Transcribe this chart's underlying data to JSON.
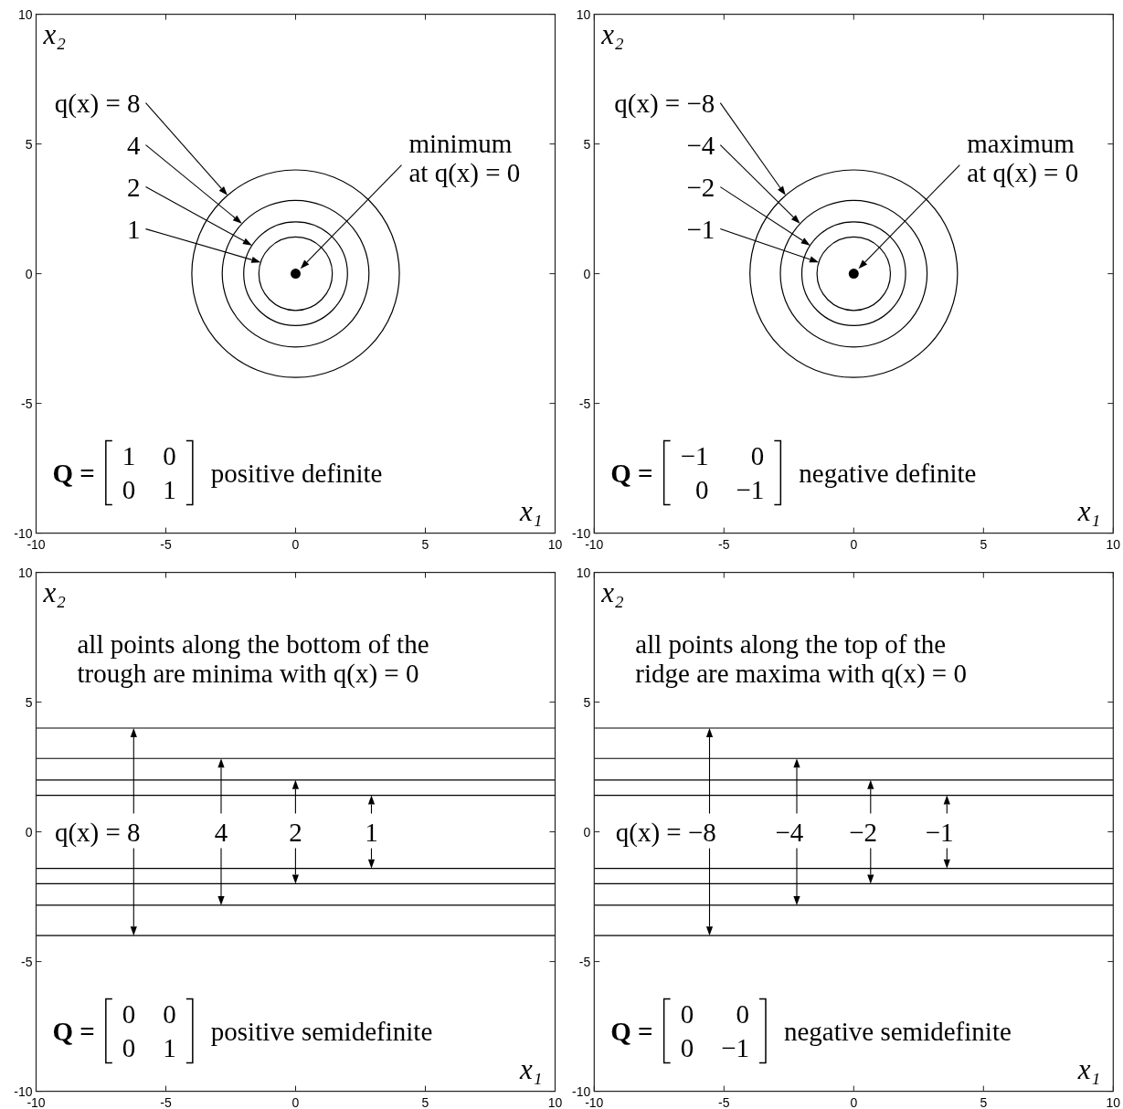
{
  "chart_data": [
    {
      "type": "scatter",
      "xlabel": "x₁",
      "ylabel": "x₂",
      "xlim": [
        -10,
        10
      ],
      "ylim": [
        -10,
        10
      ],
      "xticks": [
        -10,
        -5,
        0,
        5,
        10
      ],
      "yticks": [
        -10,
        -5,
        0,
        5,
        10
      ],
      "series": [
        {
          "marker": "circle",
          "color": "#000000",
          "x": [
            0
          ],
          "values": [
            0
          ]
        }
      ],
      "annotations": [
        "q(x) = 8",
        "4",
        "2",
        "1",
        "minimum\nat q(x) = 0",
        "Q =",
        "1 0\n0 1",
        "positive definite"
      ]
    },
    {
      "type": "scatter",
      "xlabel": "x₁",
      "ylabel": "x₂",
      "xlim": [
        -10,
        10
      ],
      "ylim": [
        -10,
        10
      ],
      "xticks": [
        -10,
        -5,
        0,
        5,
        10
      ],
      "yticks": [
        -10,
        -5,
        0,
        5,
        10
      ],
      "series": [
        {
          "marker": "circle",
          "color": "#000000",
          "x": [
            0
          ],
          "values": [
            0
          ]
        }
      ],
      "annotations": [
        "q(x) = −8",
        "−4",
        "−2",
        "−1",
        "maximum\nat q(x) = 0",
        "Q =",
        "−1 0\n0 −1",
        "negative definite"
      ]
    },
    {
      "type": "line",
      "xlabel": "x₁",
      "ylabel": "x₂",
      "xlim": [
        -10,
        10
      ],
      "ylim": [
        -10,
        10
      ],
      "xticks": [
        -10,
        -5,
        0,
        5,
        10
      ],
      "yticks": [
        -10,
        -5,
        0,
        5,
        10
      ],
      "series": [
        {
          "color": "#000000",
          "x": [
            -10,
            10
          ],
          "values": [
            4,
            4
          ]
        },
        {
          "color": "#000000",
          "x": [
            -10,
            10
          ],
          "values": [
            2.83,
            2.83
          ]
        },
        {
          "color": "#000000",
          "x": [
            -10,
            10
          ],
          "values": [
            2,
            2
          ]
        },
        {
          "color": "#000000",
          "x": [
            -10,
            10
          ],
          "values": [
            1.41,
            1.41
          ]
        },
        {
          "color": "#000000",
          "x": [
            -10,
            10
          ],
          "values": [
            -1.41,
            -1.41
          ]
        },
        {
          "color": "#000000",
          "x": [
            -10,
            10
          ],
          "values": [
            -2,
            -2
          ]
        },
        {
          "color": "#000000",
          "x": [
            -10,
            10
          ],
          "values": [
            -2.83,
            -2.83
          ]
        },
        {
          "color": "#000000",
          "x": [
            -10,
            10
          ],
          "values": [
            -4,
            -4
          ]
        }
      ],
      "annotations": [
        "q(x) = 8",
        "4",
        "2",
        "1",
        "all points along the bottom of the\ntrough are minima with q(x) = 0",
        "Q =",
        "0 0\n0 1",
        "positive semidefinite"
      ]
    },
    {
      "type": "line",
      "xlabel": "x₁",
      "ylabel": "x₂",
      "xlim": [
        -10,
        10
      ],
      "ylim": [
        -10,
        10
      ],
      "xticks": [
        -10,
        -5,
        0,
        5,
        10
      ],
      "yticks": [
        -10,
        -5,
        0,
        5,
        10
      ],
      "series": [
        {
          "color": "#000000",
          "x": [
            -10,
            10
          ],
          "values": [
            4,
            4
          ]
        },
        {
          "color": "#000000",
          "x": [
            -10,
            10
          ],
          "values": [
            2.83,
            2.83
          ]
        },
        {
          "color": "#000000",
          "x": [
            -10,
            10
          ],
          "values": [
            2,
            2
          ]
        },
        {
          "color": "#000000",
          "x": [
            -10,
            10
          ],
          "values": [
            1.41,
            1.41
          ]
        },
        {
          "color": "#000000",
          "x": [
            -10,
            10
          ],
          "values": [
            -1.41,
            -1.41
          ]
        },
        {
          "color": "#000000",
          "x": [
            -10,
            10
          ],
          "values": [
            -2,
            -2
          ]
        },
        {
          "color": "#000000",
          "x": [
            -10,
            10
          ],
          "values": [
            -2.83,
            -2.83
          ]
        },
        {
          "color": "#000000",
          "x": [
            -10,
            10
          ],
          "values": [
            -4,
            -4
          ]
        }
      ],
      "annotations": [
        "q(x) = −8",
        "−4",
        "−2",
        "−1",
        "all points along the top of the\nridge are maxima with q(x) = 0",
        "Q =",
        "0 0\n0 −1",
        "negative semidefinite"
      ]
    }
  ]
}
